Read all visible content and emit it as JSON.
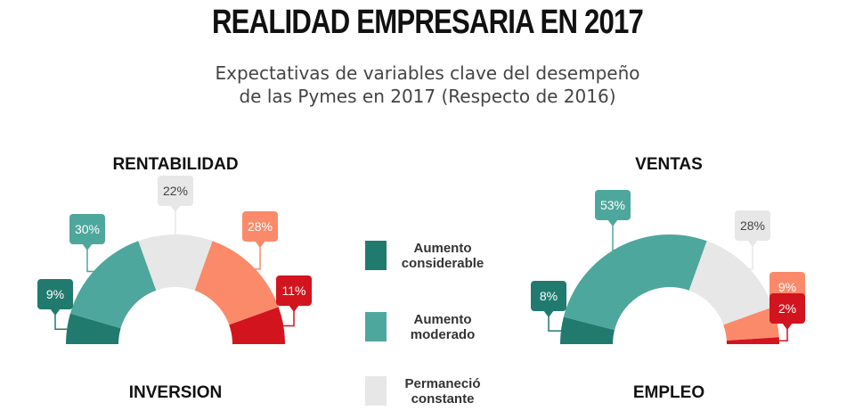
{
  "title": "REALIDAD EMPRESARIA EN 2017",
  "subtitle_line1": "Expectativas de variables clave del desempeño",
  "subtitle_line2": "de las Pymes en 2017 (Respecto de 2016)",
  "colors": {
    "aumento_considerable": "#217a6e",
    "aumento_moderado": "#4ea79c",
    "permanecio_constante": "#e7e7e7",
    "disminucion_moderada": "#fa8a6a",
    "disminucion_considerable": "#d2141e"
  },
  "legend": [
    {
      "label_line1": "Aumento",
      "label_line2": "considerable",
      "color": "#217a6e"
    },
    {
      "label_line1": "Aumento",
      "label_line2": "moderado",
      "color": "#4ea79c"
    },
    {
      "label_line1": "Permaneció",
      "label_line2": "constante",
      "color": "#e7e7e7"
    }
  ],
  "chart_data": [
    {
      "type": "pie",
      "title": "RENTABILIDAD",
      "slices": [
        {
          "label": "9%",
          "value": 9,
          "color": "#217a6e",
          "text_color": "#ffffff"
        },
        {
          "label": "30%",
          "value": 30,
          "color": "#4ea79c",
          "text_color": "#ffffff"
        },
        {
          "label": "22%",
          "value": 22,
          "color": "#e7e7e7",
          "text_color": "#444444"
        },
        {
          "label": "28%",
          "value": 28,
          "color": "#fa8a6a",
          "text_color": "#ffffff"
        },
        {
          "label": "11%",
          "value": 11,
          "color": "#d2141e",
          "text_color": "#ffffff"
        }
      ]
    },
    {
      "type": "pie",
      "title": "VENTAS",
      "slices": [
        {
          "label": "8%",
          "value": 8,
          "color": "#217a6e",
          "text_color": "#ffffff"
        },
        {
          "label": "53%",
          "value": 53,
          "color": "#4ea79c",
          "text_color": "#ffffff"
        },
        {
          "label": "28%",
          "value": 28,
          "color": "#e7e7e7",
          "text_color": "#444444"
        },
        {
          "label": "9%",
          "value": 9,
          "color": "#fa8a6a",
          "text_color": "#ffffff"
        },
        {
          "label": "2%",
          "value": 2,
          "color": "#d2141e",
          "text_color": "#ffffff"
        }
      ]
    },
    {
      "type": "pie",
      "title": "INVERSION",
      "slices": []
    },
    {
      "type": "pie",
      "title": "EMPLEO",
      "slices": []
    }
  ]
}
